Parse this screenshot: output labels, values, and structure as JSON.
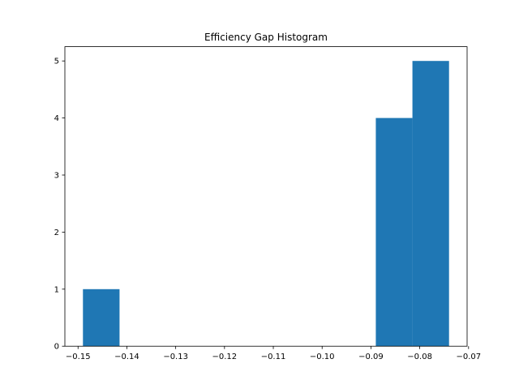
{
  "chart_data": {
    "type": "bar",
    "title": "Efficiency Gap Histogram",
    "xlabel": "",
    "ylabel": "",
    "bins": [
      {
        "x0": -0.149,
        "x1": -0.1415,
        "count": 1
      },
      {
        "x0": -0.1415,
        "x1": -0.134,
        "count": 0
      },
      {
        "x0": -0.134,
        "x1": -0.1265,
        "count": 0
      },
      {
        "x0": -0.1265,
        "x1": -0.119,
        "count": 0
      },
      {
        "x0": -0.119,
        "x1": -0.1115,
        "count": 0
      },
      {
        "x0": -0.1115,
        "x1": -0.104,
        "count": 0
      },
      {
        "x0": -0.104,
        "x1": -0.0965,
        "count": 0
      },
      {
        "x0": -0.0965,
        "x1": -0.089,
        "count": 0
      },
      {
        "x0": -0.089,
        "x1": -0.0815,
        "count": 4
      },
      {
        "x0": -0.0815,
        "x1": -0.074,
        "count": 5
      }
    ],
    "xlim": [
      -0.1527,
      -0.0703
    ],
    "ylim": [
      0,
      5.25
    ],
    "x_ticks": [
      {
        "value": -0.15,
        "label": "−0.15"
      },
      {
        "value": -0.14,
        "label": "−0.14"
      },
      {
        "value": -0.13,
        "label": "−0.13"
      },
      {
        "value": -0.12,
        "label": "−0.12"
      },
      {
        "value": -0.11,
        "label": "−0.11"
      },
      {
        "value": -0.1,
        "label": "−0.10"
      },
      {
        "value": -0.09,
        "label": "−0.09"
      },
      {
        "value": -0.08,
        "label": "−0.08"
      },
      {
        "value": -0.07,
        "label": "−0.07"
      }
    ],
    "y_ticks": [
      {
        "value": 0,
        "label": "0"
      },
      {
        "value": 1,
        "label": "1"
      },
      {
        "value": 2,
        "label": "2"
      },
      {
        "value": 3,
        "label": "3"
      },
      {
        "value": 4,
        "label": "4"
      },
      {
        "value": 5,
        "label": "5"
      }
    ],
    "grid": false,
    "colors": {
      "bar": "#1f77b4",
      "axis": "#000000",
      "background": "#ffffff"
    }
  }
}
